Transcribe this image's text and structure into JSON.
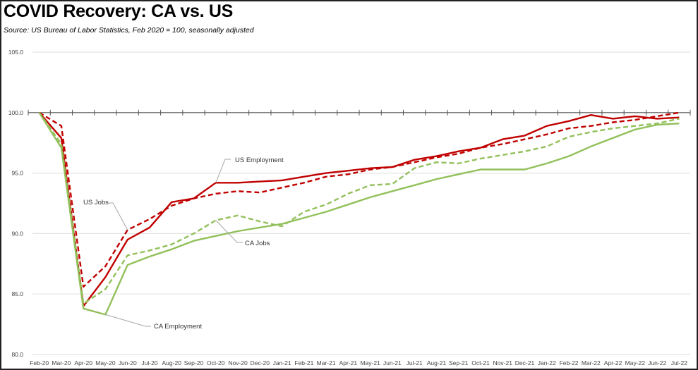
{
  "chart_data": {
    "type": "line",
    "title": "COVID Recovery:  CA vs. US",
    "subtitle": "Source:  US Bureau of Labor Statistics, Feb 2020 = 100, seasonally adjusted",
    "xlabel": "",
    "ylabel": "",
    "ylim": [
      80,
      105
    ],
    "yticks": [
      "80.0",
      "85.0",
      "90.0",
      "95.0",
      "100.0",
      "105.0"
    ],
    "ytick_values": [
      80,
      85,
      90,
      95,
      100,
      105
    ],
    "grid": true,
    "baseline": 100,
    "categories": [
      "Feb-20",
      "Mar-20",
      "Apr-20",
      "May-20",
      "Jun-20",
      "Jul-20",
      "Aug-20",
      "Sep-20",
      "Oct-20",
      "Nov-20",
      "Dec-20",
      "Jan-21",
      "Feb-21",
      "Mar-21",
      "Apr-21",
      "May-21",
      "Jun-21",
      "Jul-21",
      "Aug-21",
      "Sep-21",
      "Oct-21",
      "Nov-21",
      "Dec-21",
      "Jan-22",
      "Feb-22",
      "Mar-22",
      "Apr-22",
      "May-22",
      "Jun-22",
      "Jul-22"
    ],
    "series": [
      {
        "name": "US Employment",
        "color": "#c00000",
        "style": "solid",
        "values": [
          100,
          97.9,
          84.0,
          86.4,
          89.5,
          90.5,
          92.6,
          92.9,
          94.2,
          94.2,
          94.3,
          94.4,
          94.7,
          95.0,
          95.2,
          95.4,
          95.5,
          96.1,
          96.4,
          96.8,
          97.1,
          97.8,
          98.1,
          98.9,
          99.3,
          99.8,
          99.5,
          99.7,
          99.5,
          99.6
        ]
      },
      {
        "name": "US Jobs",
        "color": "#c00000",
        "style": "dashed",
        "values": [
          100,
          98.9,
          85.6,
          87.3,
          90.3,
          91.2,
          92.3,
          92.9,
          93.3,
          93.5,
          93.4,
          93.8,
          94.2,
          94.7,
          94.9,
          95.3,
          95.5,
          95.9,
          96.3,
          96.6,
          97.1,
          97.4,
          97.8,
          98.2,
          98.7,
          98.9,
          99.2,
          99.4,
          99.7,
          100.0
        ]
      },
      {
        "name": "CA Jobs",
        "color": "#92c05a",
        "style": "dashed",
        "values": [
          100,
          97.4,
          84.2,
          85.4,
          88.2,
          88.6,
          89.1,
          90.0,
          91.1,
          91.5,
          91.0,
          90.6,
          91.8,
          92.4,
          93.3,
          94.0,
          94.1,
          95.4,
          95.9,
          95.8,
          96.2,
          96.5,
          96.8,
          97.2,
          98.0,
          98.4,
          98.7,
          98.9,
          99.1,
          99.5
        ]
      },
      {
        "name": "CA Employment",
        "color": "#92c05a",
        "style": "solid",
        "values": [
          100,
          97.1,
          83.8,
          83.3,
          87.4,
          88.1,
          88.7,
          89.4,
          89.8,
          90.2,
          90.5,
          90.8,
          91.3,
          91.8,
          92.4,
          93.0,
          93.5,
          94.0,
          94.5,
          94.9,
          95.3,
          95.3,
          95.3,
          95.8,
          96.4,
          97.2,
          97.9,
          98.6,
          99.0,
          99.1
        ]
      }
    ],
    "annotations": [
      {
        "text": "US Employment",
        "series": "US Employment",
        "category": "Oct-20"
      },
      {
        "text": "US Jobs",
        "series": "US Jobs",
        "category": "Jun-20"
      },
      {
        "text": "CA Jobs",
        "series": "CA Jobs",
        "category": "Oct-20"
      },
      {
        "text": "CA Employment",
        "series": "CA Employment",
        "category": "May-20"
      }
    ],
    "legend": "none (inline labels)"
  }
}
